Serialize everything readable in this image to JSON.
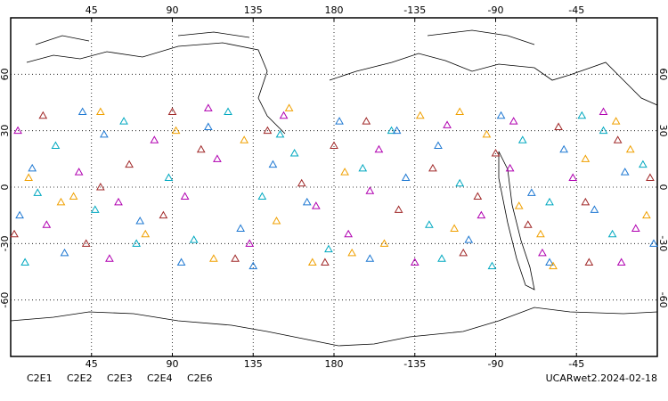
{
  "chart_data": {
    "type": "scatter",
    "xlim": [
      0,
      360
    ],
    "ylim": [
      -90,
      90
    ],
    "xticks": [
      45,
      90,
      135,
      180,
      {
        "value": 225,
        "label": "-135"
      },
      {
        "value": 270,
        "label": "-90"
      },
      {
        "value": 315,
        "label": "-45"
      }
    ],
    "yticks": [
      -60,
      -30,
      0,
      30,
      60
    ],
    "grid": true,
    "annotation": "UCARwet2.2024-02-18",
    "series": [
      {
        "name": "C2E1",
        "color": "#00a8c0",
        "x": [
          8,
          25,
          47,
          63,
          88,
          102,
          121,
          140,
          158,
          177,
          196,
          212,
          233,
          250,
          268,
          285,
          300,
          318,
          335,
          352,
          15,
          70,
          150,
          240,
          330
        ],
        "values": [
          -40,
          22,
          -12,
          35,
          5,
          -28,
          40,
          -5,
          18,
          -33,
          10,
          30,
          -20,
          2,
          -42,
          25,
          -8,
          38,
          -25,
          12,
          -3,
          -30,
          28,
          -38,
          30
        ]
      },
      {
        "name": "C2E2",
        "color": "#b000b0",
        "x": [
          4,
          20,
          38,
          55,
          80,
          97,
          115,
          133,
          152,
          170,
          188,
          205,
          225,
          243,
          262,
          278,
          296,
          313,
          330,
          348,
          60,
          110,
          200,
          280,
          340
        ],
        "values": [
          30,
          -20,
          8,
          -38,
          25,
          -5,
          15,
          -30,
          38,
          -10,
          -25,
          20,
          -40,
          33,
          -15,
          10,
          -35,
          5,
          40,
          -22,
          -8,
          42,
          -2,
          35,
          -40
        ]
      },
      {
        "name": "C2E3",
        "color": "#1e78d2",
        "x": [
          12,
          30,
          52,
          72,
          95,
          110,
          128,
          146,
          165,
          183,
          200,
          220,
          238,
          255,
          273,
          290,
          308,
          325,
          342,
          358,
          40,
          135,
          215,
          300,
          5
        ],
        "values": [
          10,
          -35,
          28,
          -18,
          -40,
          32,
          -22,
          12,
          -8,
          35,
          -38,
          5,
          22,
          -28,
          38,
          -3,
          20,
          -12,
          8,
          -30,
          40,
          -42,
          30,
          -40,
          -15
        ]
      },
      {
        "name": "C2E4",
        "color": "#a02828",
        "x": [
          2,
          18,
          42,
          66,
          85,
          106,
          125,
          143,
          162,
          180,
          198,
          216,
          235,
          252,
          270,
          288,
          305,
          322,
          338,
          356,
          90,
          175,
          260,
          320,
          50
        ],
        "values": [
          -25,
          38,
          -30,
          12,
          -15,
          20,
          -38,
          30,
          2,
          22,
          35,
          -12,
          10,
          -35,
          18,
          -20,
          32,
          -40,
          25,
          5,
          40,
          -40,
          -5,
          -8,
          0
        ]
      },
      {
        "name": "C2E6",
        "color": "#f0a000",
        "x": [
          10,
          28,
          50,
          75,
          92,
          113,
          130,
          148,
          168,
          186,
          208,
          228,
          247,
          265,
          283,
          302,
          320,
          337,
          354,
          35,
          155,
          190,
          250,
          295,
          345
        ],
        "values": [
          5,
          -8,
          40,
          -25,
          30,
          -38,
          25,
          -18,
          -40,
          8,
          -30,
          38,
          -22,
          28,
          -10,
          -42,
          15,
          35,
          -15,
          -5,
          42,
          -35,
          40,
          -25,
          20
        ]
      }
    ]
  }
}
